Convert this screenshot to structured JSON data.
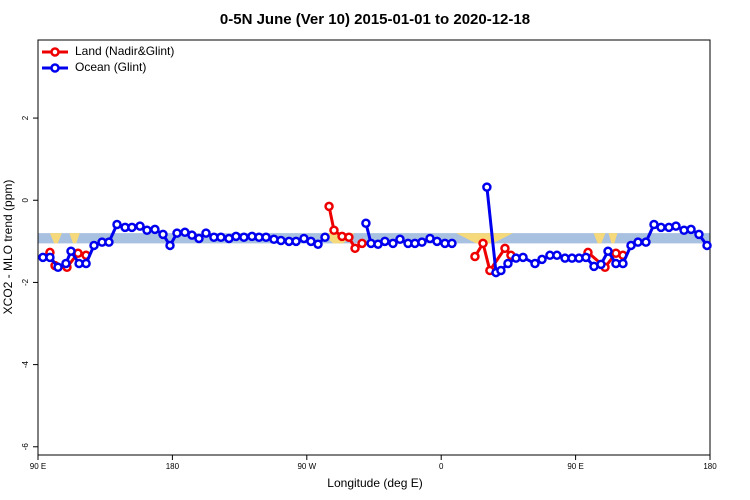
{
  "chart_data": {
    "type": "line",
    "title": "0-5N June (Ver 10)   2015-01-01 to 2020-12-18",
    "x_label": "Longitude (deg E)",
    "y_label": "XCO2 - MLO trend (ppm)",
    "xlim": [
      90,
      540
    ],
    "xticks": [
      {
        "value": 90,
        "label": "90 E"
      },
      180,
      {
        "value": 270,
        "label": "90 W"
      },
      {
        "value": 360,
        "label": "0"
      },
      {
        "value": 450,
        "label": "90 E"
      },
      {
        "value": 540,
        "label": "180"
      }
    ],
    "ylim": [
      -6.2,
      3.9
    ],
    "yticks": [
      -6,
      -4,
      -2,
      0,
      2
    ],
    "legend": "top-left",
    "band": {
      "y": [
        -1.05,
        -0.8
      ],
      "color": "#a9c1e0",
      "highlight_color": "#f5d97a",
      "highlights": [
        [
          98,
          106
        ],
        [
          111,
          118
        ],
        [
          280,
          302
        ],
        [
          370,
          408
        ],
        [
          462,
          470
        ],
        [
          472,
          478
        ]
      ]
    },
    "series": [
      {
        "name": "Land (Nadir&Glint)",
        "color": "#ee0000",
        "x": [
          98.0,
          101.4,
          109.4,
          116.8,
          122.2,
          null,
          284.9,
          288.2,
          293.6,
          298.2,
          302.3,
          307.0,
          null,
          382.6,
          388.0,
          392.6,
          402.7,
          406.7,
          null,
          458.3,
          469.7,
          477.0,
          481.7
        ],
        "values": [
          -1.27,
          -1.59,
          -1.63,
          -1.29,
          -1.34,
          null,
          -0.15,
          -0.73,
          -0.88,
          -0.9,
          -1.17,
          -1.05,
          null,
          -1.37,
          -1.05,
          -1.71,
          -1.17,
          -1.34,
          null,
          -1.27,
          -1.63,
          -1.29,
          -1.34
        ]
      },
      {
        "name": "Ocean (Glint)",
        "color": "#0000ee",
        "x": [
          93.3,
          98.0,
          103.4,
          108.7,
          112.1,
          117.5,
          122.2,
          127.5,
          132.9,
          137.5,
          142.9,
          148.3,
          152.9,
          158.3,
          163.0,
          168.3,
          173.7,
          178.4,
          183.1,
          188.4,
          193.1,
          197.8,
          202.5,
          207.8,
          212.5,
          217.9,
          222.6,
          227.9,
          233.3,
          238.0,
          242.7,
          248.0,
          252.7,
          258.1,
          262.8,
          268.1,
          272.8,
          277.5,
          282.2,
          null,
          309.6,
          313.0,
          317.7,
          322.3,
          327.7,
          332.4,
          337.8,
          342.4,
          347.1,
          352.5,
          357.2,
          362.5,
          367.2,
          null,
          390.6,
          396.7,
          400.0,
          404.7,
          410.1,
          414.8,
          422.8,
          427.5,
          432.8,
          437.5,
          442.9,
          447.6,
          452.3,
          456.9,
          462.3,
          467.0,
          471.7,
          477.0,
          481.7,
          487.1,
          491.8,
          497.1,
          502.5,
          507.2,
          512.5,
          517.2,
          522.6,
          527.3,
          532.6,
          538.0
        ],
        "values": [
          -1.39,
          -1.39,
          -1.63,
          -1.54,
          -1.24,
          -1.54,
          -1.54,
          -1.1,
          -1.02,
          -1.02,
          -0.59,
          -0.66,
          -0.66,
          -0.63,
          -0.73,
          -0.71,
          -0.83,
          -1.1,
          -0.8,
          -0.78,
          -0.85,
          -0.93,
          -0.8,
          -0.9,
          -0.9,
          -0.93,
          -0.88,
          -0.9,
          -0.88,
          -0.9,
          -0.9,
          -0.95,
          -0.98,
          -1.0,
          -1.0,
          -0.93,
          -1.0,
          -1.07,
          -0.9,
          null,
          -0.56,
          -1.05,
          -1.07,
          -1.0,
          -1.05,
          -0.95,
          -1.05,
          -1.05,
          -1.02,
          -0.93,
          -1.0,
          -1.05,
          -1.05,
          null,
          0.32,
          -1.76,
          -1.71,
          -1.54,
          -1.41,
          -1.39,
          -1.54,
          -1.44,
          -1.34,
          -1.34,
          -1.41,
          -1.41,
          -1.41,
          -1.39,
          -1.61,
          -1.56,
          -1.24,
          -1.54,
          -1.54,
          -1.1,
          -1.02,
          -1.02,
          -0.59,
          -0.66,
          -0.66,
          -0.63,
          -0.73,
          -0.71,
          -0.83,
          -1.1
        ]
      }
    ]
  }
}
